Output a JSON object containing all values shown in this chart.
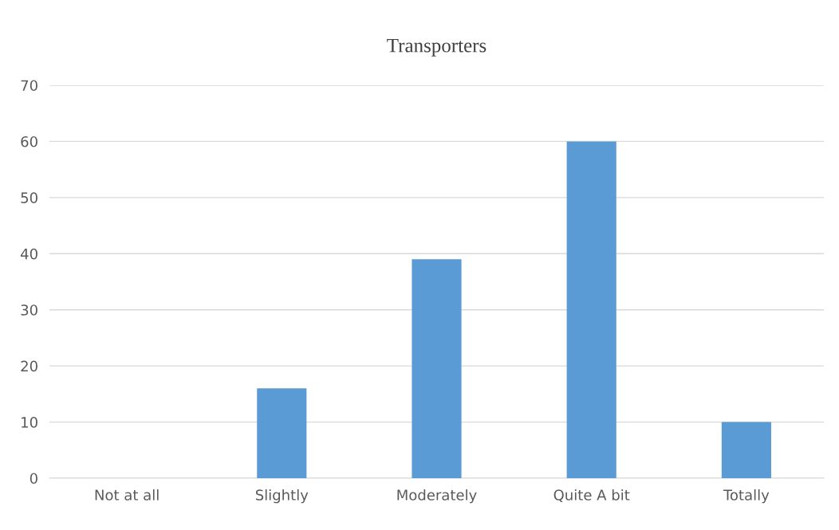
{
  "chart_data": {
    "type": "bar",
    "title": "Transporters",
    "categories": [
      "Not at all",
      "Slightly",
      "Moderately",
      "Quite A bit",
      "Totally"
    ],
    "values": [
      0,
      16,
      39,
      60,
      10
    ],
    "color": "#5b9bd5",
    "ylim": [
      0,
      70
    ],
    "yticks": [
      0,
      10,
      20,
      30,
      40,
      50,
      60,
      70
    ],
    "grid": "y",
    "legend": false
  }
}
